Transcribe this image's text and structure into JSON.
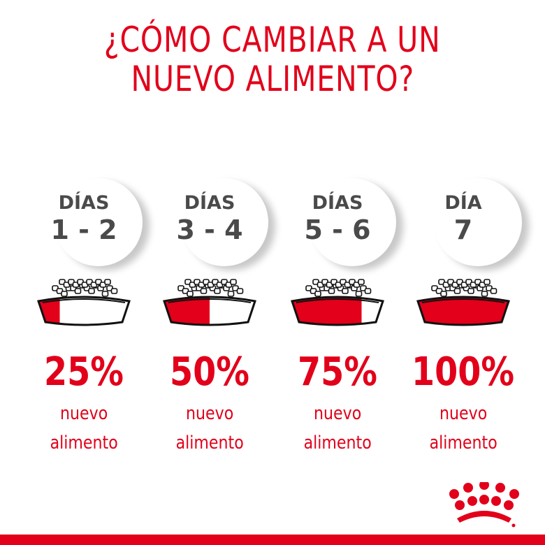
{
  "title": {
    "line1": "¿CÓMO CAMBIAR A UN",
    "line2": "NUEVO ALIMENTO?"
  },
  "colors": {
    "brand_red": "#e2001a",
    "text_grey": "#4a4a4a"
  },
  "steps": [
    {
      "label": "DÍAS",
      "days": "1 - 2",
      "percent": "25%",
      "fraction": 0.25,
      "line1": "nuevo",
      "line2": "alimento"
    },
    {
      "label": "DÍAS",
      "days": "3 - 4",
      "percent": "50%",
      "fraction": 0.5,
      "line1": "nuevo",
      "line2": "alimento"
    },
    {
      "label": "DÍAS",
      "days": "5 - 6",
      "percent": "75%",
      "fraction": 0.75,
      "line1": "nuevo",
      "line2": "alimento"
    },
    {
      "label": "DÍA",
      "days": "7",
      "percent": "100%",
      "fraction": 1.0,
      "line1": "nuevo",
      "line2": "alimento"
    }
  ],
  "logo": {
    "icon": "royal-canin-crown-icon"
  }
}
